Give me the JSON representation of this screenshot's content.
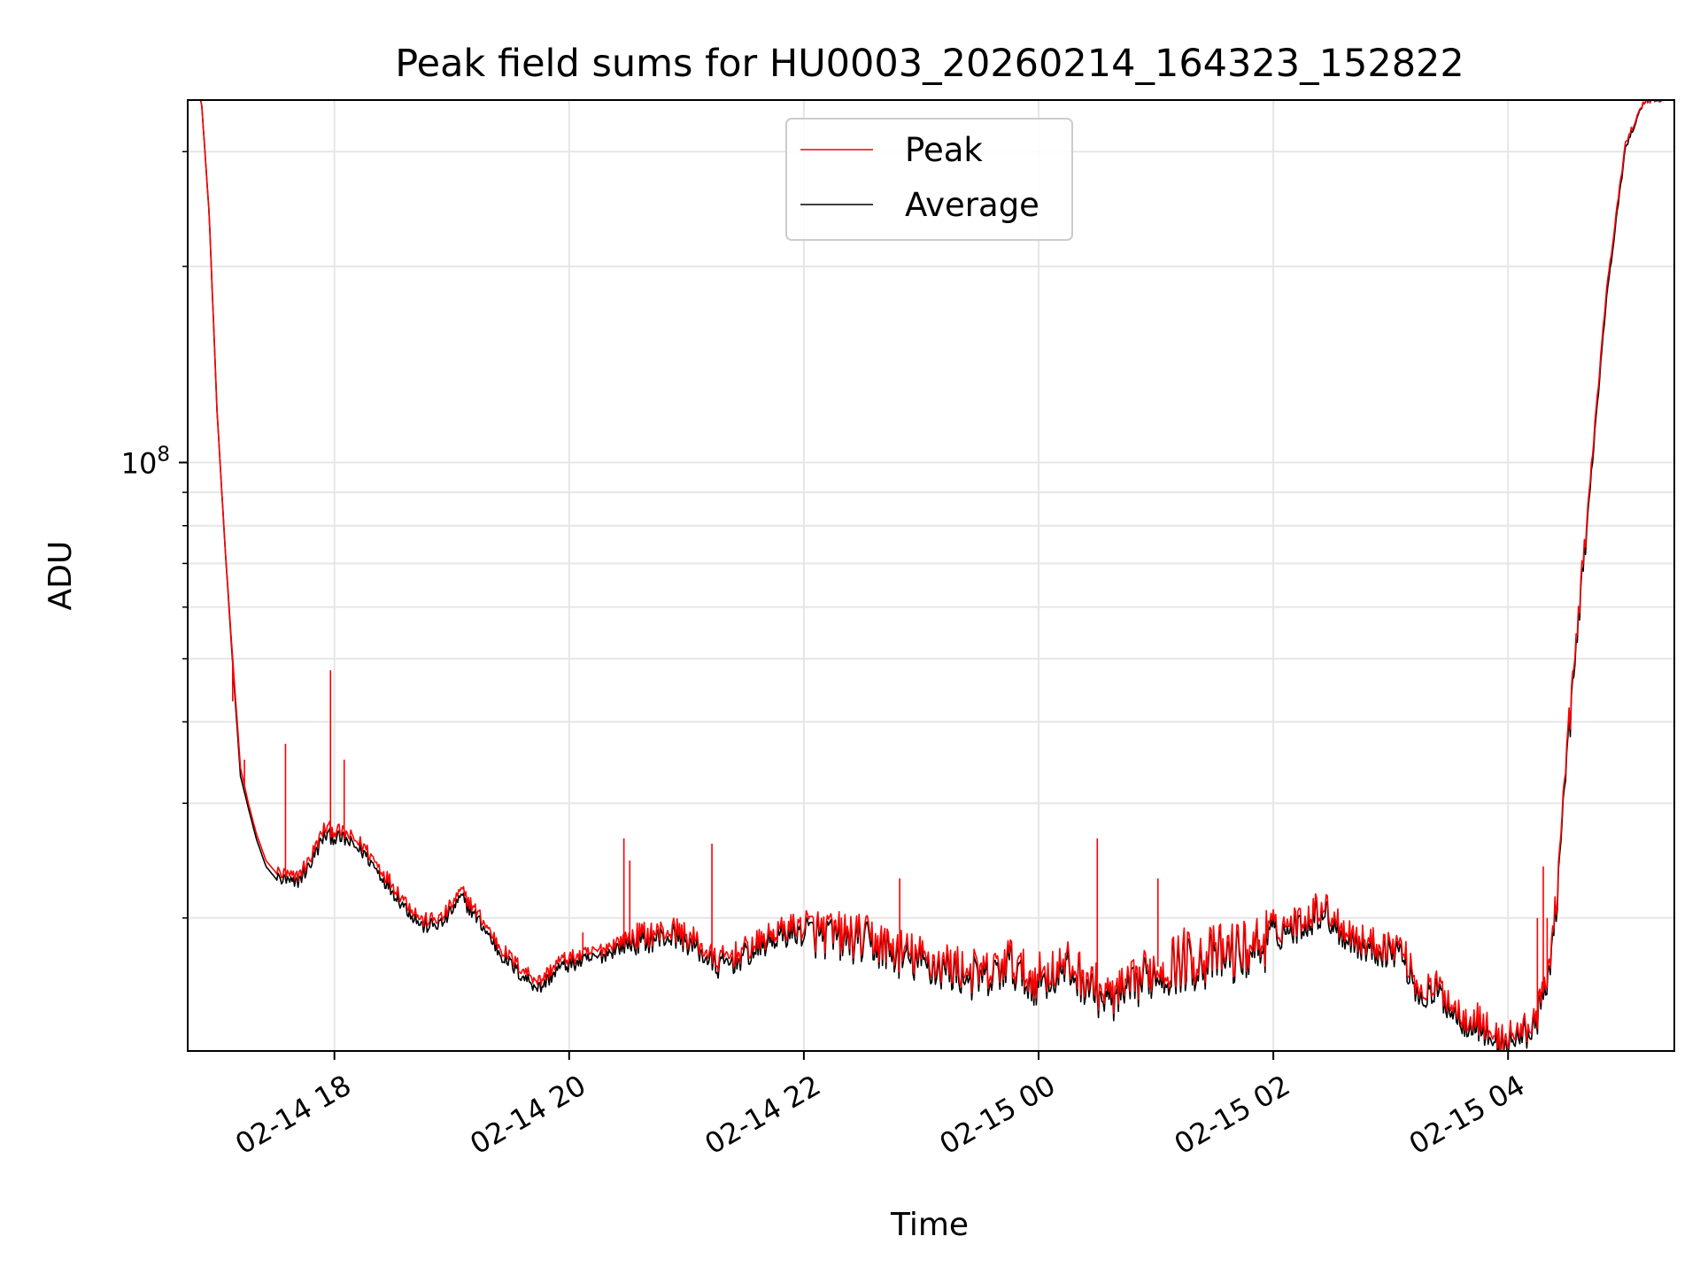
{
  "chart_data": {
    "type": "line",
    "title": "Peak field sums for HU0003_20260214_164323_152822",
    "xlabel": "Time",
    "ylabel": "ADU",
    "y_scale": "log",
    "x_ticks": [
      "02-14 18",
      "02-14 20",
      "02-14 22",
      "02-15 00",
      "02-15 02",
      "02-15 04"
    ],
    "y_ticks": [
      {
        "value": 100000000,
        "base": "10",
        "exp": "8"
      }
    ],
    "xlim": [
      "2026-02-14 16:45",
      "2026-02-15 05:25"
    ],
    "ylim": [
      12500000,
      360000000
    ],
    "grid": true,
    "legend_position": "upper center",
    "series": [
      {
        "name": "Peak",
        "color": "#ff0000",
        "x": [
          "16:48",
          "16:52",
          "16:56",
          "17:00",
          "17:04",
          "17:08",
          "17:12",
          "17:16",
          "17:20",
          "17:25",
          "17:30",
          "17:35",
          "17:40",
          "17:47",
          "17:55",
          "18:05",
          "18:15",
          "18:25",
          "18:35",
          "18:45",
          "18:55",
          "19:05",
          "19:15",
          "19:25",
          "19:35",
          "19:45",
          "19:55",
          "20:05",
          "20:15",
          "20:25",
          "20:35",
          "20:45",
          "20:55",
          "21:05",
          "21:15",
          "21:25",
          "21:35",
          "21:45",
          "21:55",
          "22:05",
          "22:15",
          "22:25",
          "22:35",
          "22:45",
          "22:55",
          "23:05",
          "23:15",
          "23:25",
          "23:35",
          "23:45",
          "23:55",
          "00:05",
          "00:15",
          "00:25",
          "00:35",
          "00:45",
          "00:55",
          "01:05",
          "01:15",
          "01:25",
          "01:35",
          "01:45",
          "01:55",
          "02:05",
          "02:15",
          "02:25",
          "02:35",
          "02:45",
          "02:55",
          "03:05",
          "03:15",
          "03:25",
          "03:35",
          "03:45",
          "03:55",
          "04:05",
          "04:10",
          "04:15",
          "04:20",
          "04:25",
          "04:30",
          "04:40",
          "04:50",
          "05:00",
          "05:10",
          "05:15",
          "05:20"
        ],
        "y": [
          360000000.0,
          360000000.0,
          240000000.0,
          120000000.0,
          75000000.0,
          50000000.0,
          34000000.0,
          30000000.0,
          27000000.0,
          24500000.0,
          23500000.0,
          23300000.0,
          23000000.0,
          24500000.0,
          27500000.0,
          27000000.0,
          25800000.0,
          23500000.0,
          21500000.0,
          19800000.0,
          20000000.0,
          22000000.0,
          20000000.0,
          18000000.0,
          16800000.0,
          16000000.0,
          17200000.0,
          17500000.0,
          17800000.0,
          18400000.0,
          18800000.0,
          19000000.0,
          19200000.0,
          18400000.0,
          17200000.0,
          17600000.0,
          18200000.0,
          19000000.0,
          19500000.0,
          19200000.0,
          19000000.0,
          18800000.0,
          18600000.0,
          18000000.0,
          17600000.0,
          17200000.0,
          17000000.0,
          16600000.0,
          16400000.0,
          17400000.0,
          16200000.0,
          16600000.0,
          17000000.0,
          16200000.0,
          15200000.0,
          15600000.0,
          16600000.0,
          17000000.0,
          17500000.0,
          17500000.0,
          17800000.0,
          18000000.0,
          18600000.0,
          19500000.0,
          20000000.0,
          21000000.0,
          19500000.0,
          18500000.0,
          18200000.0,
          18200000.0,
          15500000.0,
          15700000.0,
          14300000.0,
          14000000.0,
          13000000.0,
          13400000.0,
          13600000.0,
          14300000.0,
          16200000.0,
          22000000.0,
          36000000.0,
          80000000.0,
          180000000.0,
          310000000.0,
          360000000.0,
          360000000.0,
          360000000.0
        ],
        "spikes": [
          {
            "x": "17:08",
            "y": 43000000.0
          },
          {
            "x": "17:14",
            "y": 35000000.0
          },
          {
            "x": "17:35",
            "y": 37000000.0
          },
          {
            "x": "17:58",
            "y": 48000000.0
          },
          {
            "x": "18:05",
            "y": 35000000.0
          },
          {
            "x": "20:07",
            "y": 19000000.0
          },
          {
            "x": "20:28",
            "y": 26500000.0
          },
          {
            "x": "20:31",
            "y": 24500000.0
          },
          {
            "x": "21:13",
            "y": 26000000.0
          },
          {
            "x": "22:49",
            "y": 23000000.0
          },
          {
            "x": "00:30",
            "y": 26500000.0
          },
          {
            "x": "01:01",
            "y": 23000000.0
          },
          {
            "x": "04:15",
            "y": 20000000.0
          },
          {
            "x": "04:18",
            "y": 24000000.0
          },
          {
            "x": "04:20",
            "y": 20000000.0
          }
        ]
      },
      {
        "name": "Average",
        "color": "#000000",
        "x": [
          "16:48",
          "16:52",
          "16:56",
          "17:00",
          "17:04",
          "17:08",
          "17:12",
          "17:16",
          "17:20",
          "17:25",
          "17:30",
          "17:35",
          "17:40",
          "17:47",
          "17:55",
          "18:05",
          "18:15",
          "18:25",
          "18:35",
          "18:45",
          "18:55",
          "19:05",
          "19:15",
          "19:25",
          "19:35",
          "19:45",
          "19:55",
          "20:05",
          "20:15",
          "20:25",
          "20:35",
          "20:45",
          "20:55",
          "21:05",
          "21:15",
          "21:25",
          "21:35",
          "21:45",
          "21:55",
          "22:05",
          "22:15",
          "22:25",
          "22:35",
          "22:45",
          "22:55",
          "23:05",
          "23:15",
          "23:25",
          "23:35",
          "23:45",
          "23:55",
          "00:05",
          "00:15",
          "00:25",
          "00:35",
          "00:45",
          "00:55",
          "01:05",
          "01:15",
          "01:25",
          "01:35",
          "01:45",
          "01:55",
          "02:05",
          "02:15",
          "02:25",
          "02:35",
          "02:45",
          "02:55",
          "03:05",
          "03:15",
          "03:25",
          "03:35",
          "03:45",
          "03:55",
          "04:05",
          "04:10",
          "04:15",
          "04:20",
          "04:25",
          "04:30",
          "04:40",
          "04:50",
          "05:00",
          "05:10",
          "05:15",
          "05:20"
        ],
        "y": [
          360000000.0,
          360000000.0,
          240000000.0,
          120000000.0,
          75000000.0,
          49000000.0,
          33000000.0,
          29500000.0,
          26500000.0,
          24000000.0,
          23000000.0,
          22800000.0,
          22500000.0,
          24000000.0,
          26800000.0,
          26400000.0,
          25200000.0,
          23000000.0,
          21000000.0,
          19400000.0,
          19600000.0,
          21500000.0,
          19600000.0,
          17600000.0,
          16400000.0,
          15600000.0,
          16800000.0,
          17100000.0,
          17400000.0,
          18000000.0,
          18400000.0,
          18600000.0,
          18800000.0,
          18000000.0,
          16800000.0,
          17200000.0,
          17800000.0,
          18600000.0,
          19000000.0,
          18800000.0,
          18600000.0,
          18400000.0,
          18200000.0,
          17600000.0,
          17200000.0,
          16800000.0,
          16600000.0,
          16200000.0,
          16000000.0,
          17000000.0,
          15800000.0,
          16200000.0,
          16600000.0,
          15800000.0,
          14800000.0,
          15200000.0,
          16200000.0,
          16600000.0,
          17100000.0,
          17100000.0,
          17400000.0,
          17600000.0,
          18200000.0,
          19000000.0,
          19500000.0,
          20500000.0,
          19000000.0,
          18100000.0,
          17800000.0,
          17800000.0,
          15100000.0,
          15300000.0,
          14000000.0,
          13700000.0,
          12700000.0,
          13100000.0,
          13300000.0,
          14000000.0,
          15800000.0,
          21500000.0,
          35000000.0,
          78000000.0,
          175000000.0,
          305000000.0,
          360000000.0,
          360000000.0,
          360000000.0
        ]
      }
    ]
  }
}
